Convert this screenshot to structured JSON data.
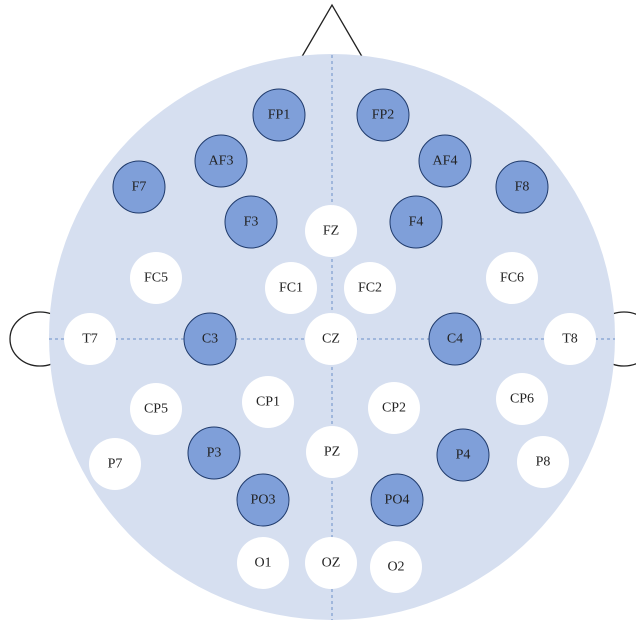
{
  "nodes": [
    {
      "label": "FP1",
      "active": true
    },
    {
      "label": "FP2",
      "active": true
    },
    {
      "label": "AF3",
      "active": true
    },
    {
      "label": "AF4",
      "active": true
    },
    {
      "label": "F7",
      "active": true
    },
    {
      "label": "F8",
      "active": true
    },
    {
      "label": "F3",
      "active": true
    },
    {
      "label": "FZ",
      "active": false
    },
    {
      "label": "F4",
      "active": true
    },
    {
      "label": "FC5",
      "active": false
    },
    {
      "label": "FC1",
      "active": false
    },
    {
      "label": "FC2",
      "active": false
    },
    {
      "label": "FC6",
      "active": false
    },
    {
      "label": "T7",
      "active": false
    },
    {
      "label": "C3",
      "active": true
    },
    {
      "label": "CZ",
      "active": false
    },
    {
      "label": "C4",
      "active": true
    },
    {
      "label": "T8",
      "active": false
    },
    {
      "label": "CP5",
      "active": false
    },
    {
      "label": "CP1",
      "active": false
    },
    {
      "label": "CP2",
      "active": false
    },
    {
      "label": "CP6",
      "active": false
    },
    {
      "label": "P7",
      "active": false
    },
    {
      "label": "P3",
      "active": true
    },
    {
      "label": "PZ",
      "active": false
    },
    {
      "label": "P4",
      "active": true
    },
    {
      "label": "P8",
      "active": false
    },
    {
      "label": "PO3",
      "active": true
    },
    {
      "label": "PO4",
      "active": true
    },
    {
      "label": "O1",
      "active": false
    },
    {
      "label": "OZ",
      "active": false
    },
    {
      "label": "O2",
      "active": false
    }
  ]
}
